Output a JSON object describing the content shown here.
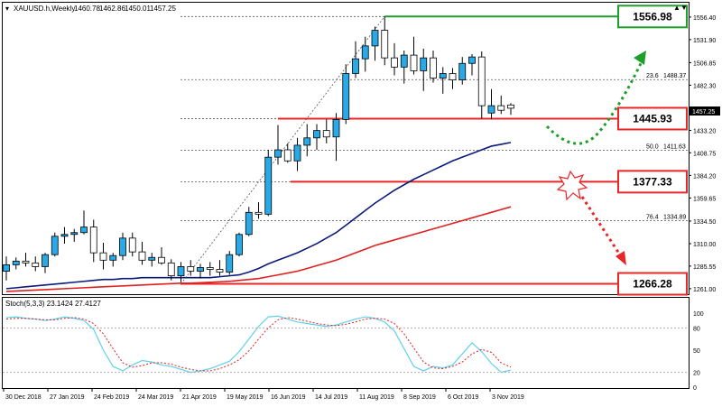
{
  "window": {
    "title": "XAUUSD.h,Weekly",
    "ohlc": [
      "1460.78",
      "1462.86",
      "1450.01",
      "1457.25"
    ],
    "close_controls": [
      "▲",
      "▼"
    ]
  },
  "oscillator": {
    "title": "Stoch(5,3,3) 23.1424 27.4127",
    "ticks": [
      "100",
      "80",
      "50",
      "20",
      "0"
    ]
  },
  "price_axis": {
    "ticks": [
      "1556.40",
      "1531.90",
      "1506.85",
      "1482.30",
      "1457.25",
      "1433.20",
      "1408.75",
      "1384.20",
      "1359.65",
      "1334.50",
      "1310.00",
      "1285.55",
      "1261.00"
    ],
    "current_price": "1457.25"
  },
  "time_axis": {
    "ticks": [
      "30 Dec 2018",
      "27 Jan 2019",
      "24 Feb 2019",
      "24 Mar 2019",
      "21 Apr 2019",
      "19 May 2019",
      "16 Jun 2019",
      "14 Jul 2019",
      "11 Aug 2019",
      "8 Sep 2019",
      "6 Oct 2019",
      "3 Nov 2019"
    ]
  },
  "fib_labels": [
    "23.6",
    "1488.37",
    "50.0",
    "1411.63",
    "76.4",
    "1334.89"
  ],
  "levels": [
    {
      "value": 1556.98,
      "label": "1556.98",
      "color": "#1e9e2a"
    },
    {
      "value": 1445.93,
      "label": "1445.93",
      "color": "#e8262a"
    },
    {
      "value": 1377.33,
      "label": "1377.33",
      "color": "#e8262a"
    },
    {
      "value": 1266.28,
      "label": "1266.28",
      "color": "#e8262a"
    }
  ],
  "colors": {
    "bull_candle": "#29a9e6",
    "bear_candle": "#ffffff",
    "ma_fast": "#0a1b7a",
    "ma_slow": "#e02020",
    "stoch_main": "#5fd0ee",
    "stoch_signal": "#e02020",
    "up_arrow": "#1e9e2a",
    "down_arrow": "#e8262a"
  },
  "chart_data": {
    "type": "candlestick",
    "title": "XAUUSD.h,Weekly",
    "ylim": [
      1255,
      1572
    ],
    "candles": [
      {
        "o": 1280,
        "h": 1296,
        "l": 1270,
        "c": 1287
      },
      {
        "o": 1287,
        "h": 1295,
        "l": 1282,
        "c": 1291
      },
      {
        "o": 1291,
        "h": 1300,
        "l": 1285,
        "c": 1289
      },
      {
        "o": 1289,
        "h": 1296,
        "l": 1280,
        "c": 1285
      },
      {
        "o": 1285,
        "h": 1300,
        "l": 1278,
        "c": 1298
      },
      {
        "o": 1298,
        "h": 1322,
        "l": 1296,
        "c": 1318
      },
      {
        "o": 1318,
        "h": 1328,
        "l": 1310,
        "c": 1320
      },
      {
        "o": 1320,
        "h": 1326,
        "l": 1312,
        "c": 1322
      },
      {
        "o": 1322,
        "h": 1346,
        "l": 1320,
        "c": 1328
      },
      {
        "o": 1328,
        "h": 1336,
        "l": 1290,
        "c": 1300
      },
      {
        "o": 1300,
        "h": 1311,
        "l": 1282,
        "c": 1292
      },
      {
        "o": 1292,
        "h": 1300,
        "l": 1285,
        "c": 1297
      },
      {
        "o": 1297,
        "h": 1322,
        "l": 1292,
        "c": 1316
      },
      {
        "o": 1316,
        "h": 1322,
        "l": 1296,
        "c": 1301
      },
      {
        "o": 1301,
        "h": 1312,
        "l": 1287,
        "c": 1292
      },
      {
        "o": 1292,
        "h": 1300,
        "l": 1285,
        "c": 1295
      },
      {
        "o": 1295,
        "h": 1306,
        "l": 1287,
        "c": 1289
      },
      {
        "o": 1289,
        "h": 1293,
        "l": 1270,
        "c": 1275
      },
      {
        "o": 1275,
        "h": 1290,
        "l": 1268,
        "c": 1285
      },
      {
        "o": 1285,
        "h": 1292,
        "l": 1275,
        "c": 1280
      },
      {
        "o": 1280,
        "h": 1288,
        "l": 1272,
        "c": 1284
      },
      {
        "o": 1284,
        "h": 1290,
        "l": 1275,
        "c": 1282
      },
      {
        "o": 1282,
        "h": 1292,
        "l": 1275,
        "c": 1279
      },
      {
        "o": 1279,
        "h": 1302,
        "l": 1276,
        "c": 1298
      },
      {
        "o": 1298,
        "h": 1322,
        "l": 1296,
        "c": 1320
      },
      {
        "o": 1320,
        "h": 1350,
        "l": 1318,
        "c": 1344
      },
      {
        "o": 1344,
        "h": 1355,
        "l": 1337,
        "c": 1342
      },
      {
        "o": 1342,
        "h": 1412,
        "l": 1340,
        "c": 1404
      },
      {
        "o": 1404,
        "h": 1439,
        "l": 1396,
        "c": 1412
      },
      {
        "o": 1412,
        "h": 1419,
        "l": 1398,
        "c": 1400
      },
      {
        "o": 1400,
        "h": 1425,
        "l": 1389,
        "c": 1417
      },
      {
        "o": 1417,
        "h": 1440,
        "l": 1405,
        "c": 1425
      },
      {
        "o": 1425,
        "h": 1440,
        "l": 1412,
        "c": 1433
      },
      {
        "o": 1433,
        "h": 1445,
        "l": 1419,
        "c": 1426
      },
      {
        "o": 1426,
        "h": 1452,
        "l": 1400,
        "c": 1445
      },
      {
        "o": 1445,
        "h": 1505,
        "l": 1440,
        "c": 1495
      },
      {
        "o": 1495,
        "h": 1530,
        "l": 1490,
        "c": 1511
      },
      {
        "o": 1511,
        "h": 1535,
        "l": 1497,
        "c": 1525
      },
      {
        "o": 1525,
        "h": 1546,
        "l": 1509,
        "c": 1542
      },
      {
        "o": 1542,
        "h": 1557,
        "l": 1504,
        "c": 1512
      },
      {
        "o": 1512,
        "h": 1528,
        "l": 1493,
        "c": 1502
      },
      {
        "o": 1502,
        "h": 1520,
        "l": 1484,
        "c": 1515
      },
      {
        "o": 1515,
        "h": 1535,
        "l": 1494,
        "c": 1498
      },
      {
        "o": 1498,
        "h": 1522,
        "l": 1476,
        "c": 1512
      },
      {
        "o": 1512,
        "h": 1520,
        "l": 1485,
        "c": 1490
      },
      {
        "o": 1490,
        "h": 1502,
        "l": 1473,
        "c": 1495
      },
      {
        "o": 1495,
        "h": 1501,
        "l": 1478,
        "c": 1488
      },
      {
        "o": 1488,
        "h": 1513,
        "l": 1483,
        "c": 1506
      },
      {
        "o": 1506,
        "h": 1516,
        "l": 1493,
        "c": 1513
      },
      {
        "o": 1513,
        "h": 1519,
        "l": 1446,
        "c": 1460
      },
      {
        "o": 1452,
        "h": 1478,
        "l": 1445,
        "c": 1460
      },
      {
        "o": 1460,
        "h": 1471,
        "l": 1451,
        "c": 1455
      },
      {
        "o": 1460.78,
        "h": 1462.86,
        "l": 1450.01,
        "c": 1457.25
      }
    ],
    "ma_fast": [
      1261,
      1262,
      1263,
      1264,
      1265,
      1266,
      1267,
      1268,
      1269,
      1270,
      1271,
      1271,
      1272,
      1272,
      1273,
      1273,
      1273,
      1273,
      1273,
      1273,
      1273,
      1273,
      1274,
      1275,
      1276,
      1279,
      1283,
      1288,
      1292,
      1296,
      1300,
      1305,
      1310,
      1316,
      1322,
      1330,
      1338,
      1346,
      1354,
      1361,
      1368,
      1374,
      1380,
      1385,
      1390,
      1395,
      1400,
      1404,
      1408,
      1412,
      1416,
      1418,
      1420
    ],
    "ma_slow": [
      1258,
      1258.5,
      1259,
      1259.5,
      1260,
      1260.5,
      1261,
      1261.5,
      1262,
      1262.5,
      1263,
      1263.5,
      1264,
      1264.5,
      1265,
      1265.5,
      1266,
      1266.5,
      1267,
      1267,
      1267.5,
      1268,
      1268.5,
      1269,
      1270,
      1271,
      1272,
      1274,
      1276,
      1278,
      1280,
      1283,
      1286,
      1289,
      1292,
      1296,
      1300,
      1304,
      1308,
      1311,
      1314,
      1317,
      1320,
      1323,
      1326,
      1329,
      1332,
      1335,
      1338,
      1341,
      1344,
      1347,
      1350
    ],
    "stoch_main": [
      94,
      95,
      93,
      92,
      90,
      92,
      95,
      93,
      90,
      78,
      50,
      28,
      22,
      30,
      36,
      34,
      30,
      28,
      24,
      20,
      22,
      25,
      30,
      35,
      48,
      65,
      82,
      95,
      96,
      92,
      88,
      86,
      84,
      82,
      84,
      88,
      92,
      95,
      93,
      88,
      76,
      52,
      28,
      22,
      28,
      26,
      30,
      45,
      60,
      48,
      32,
      20,
      23
    ],
    "stoch_signal": [
      92,
      93,
      93,
      92,
      91,
      91,
      93,
      94,
      92,
      86,
      72,
      52,
      33,
      27,
      29,
      33,
      33,
      31,
      27,
      24,
      22,
      22,
      25,
      30,
      37,
      49,
      65,
      80,
      91,
      94,
      92,
      89,
      86,
      84,
      83,
      85,
      88,
      92,
      93,
      92,
      86,
      72,
      53,
      34,
      26,
      25,
      28,
      34,
      45,
      51,
      47,
      33,
      27
    ],
    "fibonacci": [
      {
        "level": "23.6",
        "price": 1488.37
      },
      {
        "level": "50.0",
        "price": 1411.63
      },
      {
        "level": "76.4",
        "price": 1334.89
      }
    ]
  }
}
